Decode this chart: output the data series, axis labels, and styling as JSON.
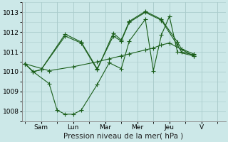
{
  "bg_color": "#cce8e8",
  "grid_color": "#aacccc",
  "line_color": "#1a5e1a",
  "line_width": 0.8,
  "marker": "+",
  "marker_size": 4,
  "xlabel": "Pression niveau de la mer( hPa )",
  "xlabel_fontsize": 7.5,
  "ylim": [
    1007.5,
    1013.5
  ],
  "yticks": [
    1008,
    1009,
    1010,
    1011,
    1012,
    1013
  ],
  "ytick_fontsize": 6.5,
  "xtick_fontsize": 6.5,
  "x_day_labels": [
    "Sam",
    "Lun",
    "Mar",
    "Mer",
    "Jeu",
    "V"
  ],
  "x_day_positions": [
    1,
    3,
    5,
    7,
    9,
    11
  ],
  "xlim": [
    -0.2,
    12.5
  ],
  "x_sep_positions": [
    0,
    2,
    4,
    6,
    8,
    10,
    12
  ],
  "lines": [
    {
      "x": [
        0,
        0.5,
        1.0,
        2.5,
        3.5,
        4.5,
        5.5,
        6.0,
        6.5,
        7.5,
        8.5,
        9.5,
        9.75,
        10.5
      ],
      "y": [
        1010.4,
        1010.0,
        1010.1,
        1011.9,
        1011.5,
        1010.15,
        1011.8,
        1011.55,
        1012.5,
        1013.0,
        1012.6,
        1011.35,
        1011.0,
        1010.85
      ]
    },
    {
      "x": [
        0,
        0.5,
        1.0,
        2.5,
        3.5,
        4.5,
        5.5,
        6.0,
        6.5,
        7.5,
        8.5,
        9.5,
        9.75,
        10.5
      ],
      "y": [
        1010.4,
        1010.0,
        1010.1,
        1011.8,
        1011.45,
        1010.1,
        1011.95,
        1011.6,
        1012.55,
        1013.05,
        1012.65,
        1011.5,
        1011.15,
        1010.9
      ]
    },
    {
      "x": [
        0,
        0.5,
        1.5,
        2.0,
        2.5,
        3.0,
        3.5,
        4.5,
        5.25,
        6.0,
        6.5,
        7.5,
        8.0,
        8.5,
        9.0,
        9.5,
        10.5
      ],
      "y": [
        1010.4,
        1010.0,
        1009.4,
        1008.05,
        1007.85,
        1007.85,
        1008.05,
        1009.35,
        1010.45,
        1010.15,
        1011.55,
        1012.65,
        1010.05,
        1011.85,
        1012.8,
        1011.0,
        1010.8
      ]
    },
    {
      "x": [
        0,
        1.5,
        3.0,
        4.5,
        5.25,
        6.0,
        6.5,
        7.5,
        8.0,
        8.5,
        9.0,
        10.5
      ],
      "y": [
        1010.4,
        1010.05,
        1010.25,
        1010.5,
        1010.65,
        1010.8,
        1010.9,
        1011.1,
        1011.2,
        1011.35,
        1011.45,
        1010.8
      ]
    }
  ]
}
